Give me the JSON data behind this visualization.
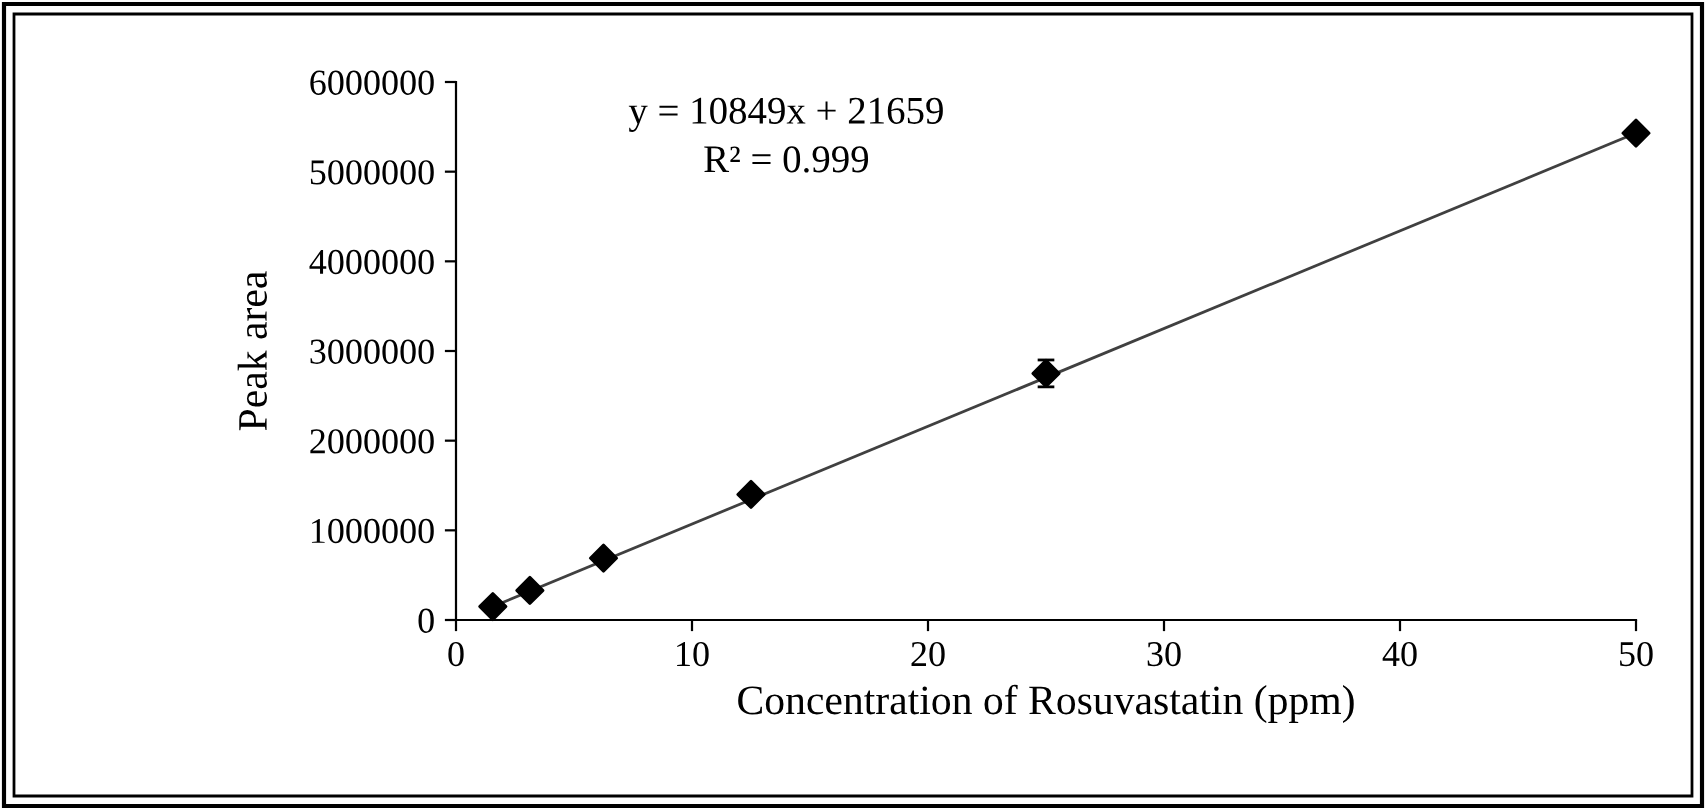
{
  "chart_data": {
    "type": "scatter",
    "xlabel": "Concentration of Rosuvastatin (ppm)",
    "ylabel": "Peak area",
    "xlim": [
      0,
      50
    ],
    "xticks": [
      0,
      10,
      20,
      30,
      40,
      50
    ],
    "ylim": [
      0,
      6000000
    ],
    "yticks": [
      0,
      1000000,
      2000000,
      3000000,
      4000000,
      5000000,
      6000000
    ],
    "grid": false,
    "legend": false,
    "series": [
      {
        "marker": "diamond",
        "color": "#000000",
        "x": [
          1.56,
          3.13,
          6.25,
          12.5,
          25,
          50
        ],
        "values": [
          150000,
          330000,
          690000,
          1400000,
          2750000,
          5430000
        ],
        "errors": [
          null,
          null,
          null,
          null,
          150000,
          null
        ]
      },
      {
        "type": "line",
        "color": "#404040",
        "line_style": "solid",
        "x": [
          1.56,
          50
        ],
        "values": [
          150000,
          5430000
        ]
      }
    ],
    "annotations": [
      "y = 10849x + 21659",
      "R² = 0.999"
    ]
  }
}
